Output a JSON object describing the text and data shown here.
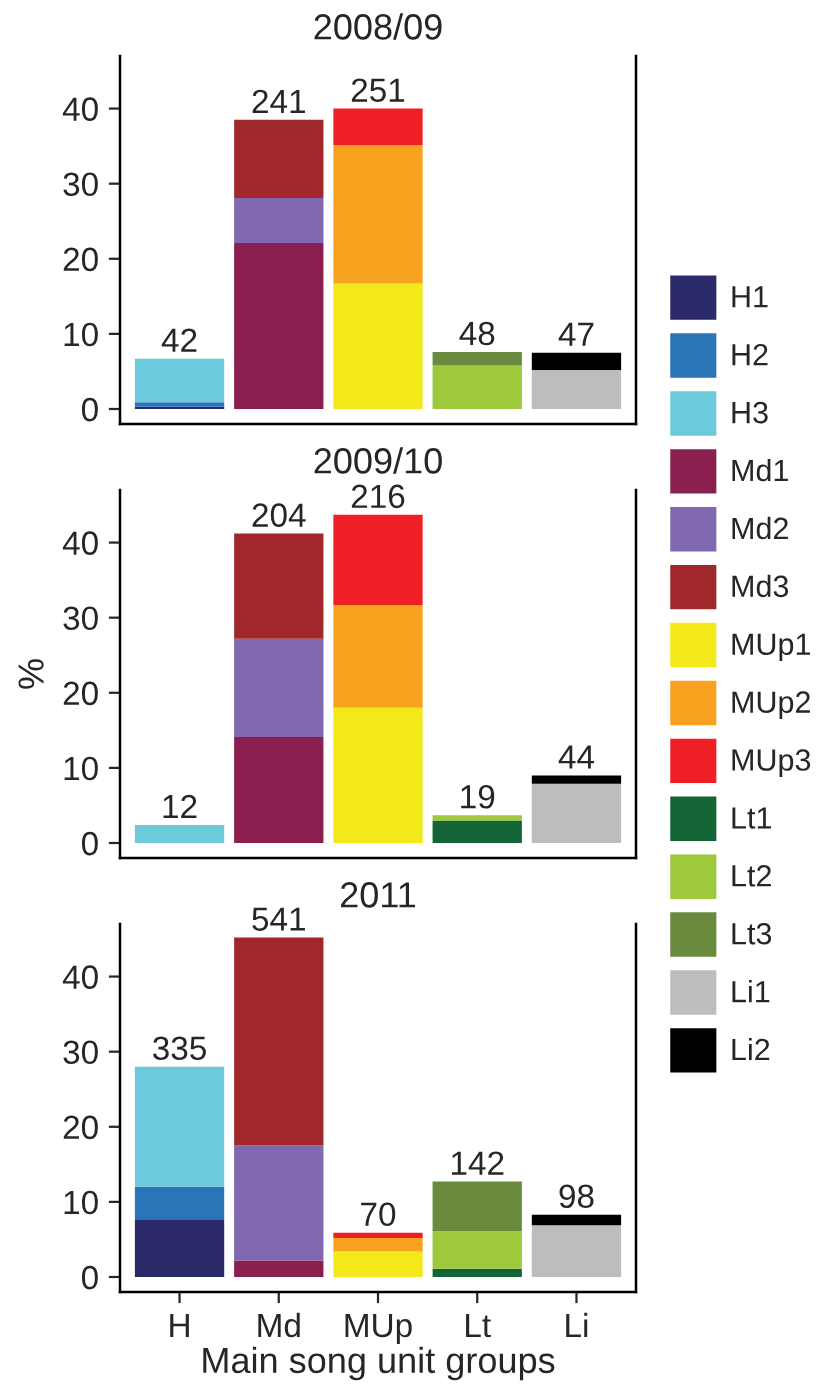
{
  "chart_data": [
    {
      "type": "bar",
      "title": "2008/09",
      "stacked": true,
      "categories": [
        null,
        null,
        null,
        null,
        null
      ],
      "ylim": [
        -2,
        47
      ],
      "yticks": [
        0,
        10,
        20,
        30,
        40
      ],
      "tick_labels": "y",
      "annotations": [
        {
          "text": "42",
          "y": 6.7
        },
        {
          "text": "241",
          "y": 38.5
        },
        {
          "text": "251",
          "y": 40.0
        },
        {
          "text": "48",
          "y": 7.6
        },
        {
          "text": "47",
          "y": 7.5
        }
      ],
      "series": [
        {
          "color": "#2b2a6b",
          "values": [
            0.3,
            null,
            null,
            null,
            null
          ]
        },
        {
          "color": "#2a74b8",
          "values": [
            0.6,
            null,
            null,
            null,
            null
          ]
        },
        {
          "color": "#6ccbdb",
          "values": [
            5.8,
            null,
            null,
            null,
            null
          ]
        },
        {
          "color": "#8a1f50",
          "values": [
            null,
            22.1,
            null,
            null,
            null
          ]
        },
        {
          "color": "#8068b0",
          "values": [
            null,
            6.0,
            null,
            null,
            null
          ]
        },
        {
          "color": "#a1282a",
          "values": [
            null,
            10.4,
            null,
            null,
            null
          ]
        },
        {
          "color": "#f2e81a",
          "values": [
            null,
            null,
            16.7,
            null,
            null
          ]
        },
        {
          "color": "#f8a21f",
          "values": [
            null,
            null,
            18.4,
            null,
            null
          ]
        },
        {
          "color": "#ee2025",
          "values": [
            null,
            null,
            4.9,
            null,
            null
          ]
        },
        {
          "color": "#9ec93d",
          "values": [
            null,
            null,
            null,
            5.8,
            null
          ]
        },
        {
          "color": "#6a8a3e",
          "values": [
            null,
            null,
            null,
            1.8,
            null
          ]
        },
        {
          "color": "#bdbdbd",
          "values": [
            null,
            null,
            null,
            null,
            5.2
          ]
        },
        {
          "color": "#000000",
          "values": [
            null,
            null,
            null,
            null,
            2.3
          ]
        }
      ]
    },
    {
      "type": "bar",
      "title": "2009/10",
      "ylabel": "%",
      "stacked": true,
      "categories": [
        null,
        null,
        null,
        null,
        null
      ],
      "ylim": [
        -2,
        47
      ],
      "yticks": [
        0,
        10,
        20,
        30,
        40
      ],
      "tick_labels": "y",
      "legend": "right",
      "annotations": [
        {
          "text": "12",
          "y": 2.4
        },
        {
          "text": "204",
          "y": 41.2
        },
        {
          "text": "216",
          "y": 43.7
        },
        {
          "text": "19",
          "y": 3.7
        },
        {
          "text": "44",
          "y": 9.0
        }
      ],
      "series": [
        {
          "name": "H1",
          "color": "#2b2a6b",
          "values": [
            null,
            null,
            null,
            null,
            null
          ]
        },
        {
          "name": "H2",
          "color": "#2a74b8",
          "values": [
            null,
            null,
            null,
            null,
            null
          ]
        },
        {
          "name": "H3",
          "color": "#6ccbdb",
          "values": [
            2.4,
            null,
            null,
            null,
            null
          ]
        },
        {
          "name": "Md1",
          "color": "#8a1f50",
          "values": [
            null,
            14.1,
            null,
            null,
            null
          ]
        },
        {
          "name": "Md2",
          "color": "#8068b0",
          "values": [
            null,
            13.1,
            null,
            null,
            null
          ]
        },
        {
          "name": "Md3",
          "color": "#a1282a",
          "values": [
            null,
            14.0,
            null,
            null,
            null
          ]
        },
        {
          "name": "MUp1",
          "color": "#f2e81a",
          "values": [
            null,
            null,
            18.0,
            null,
            null
          ]
        },
        {
          "name": "MUp2",
          "color": "#f8a21f",
          "values": [
            null,
            null,
            13.7,
            null,
            null
          ]
        },
        {
          "name": "MUp3",
          "color": "#ee2025",
          "values": [
            null,
            null,
            12.0,
            null,
            null
          ]
        },
        {
          "name": "Lt1",
          "color": "#146536",
          "values": [
            null,
            null,
            null,
            3.0,
            null
          ]
        },
        {
          "name": "Lt2",
          "color": "#9ec93d",
          "values": [
            null,
            null,
            null,
            0.7,
            null
          ]
        },
        {
          "name": "Lt3",
          "color": "#6a8a3e",
          "values": [
            null,
            null,
            null,
            null,
            null
          ]
        },
        {
          "name": "Li1",
          "color": "#bdbdbd",
          "values": [
            null,
            null,
            null,
            null,
            7.9
          ]
        },
        {
          "name": "Li2",
          "color": "#000000",
          "values": [
            null,
            null,
            null,
            null,
            1.1
          ]
        }
      ]
    },
    {
      "type": "bar",
      "title": "2011",
      "xlabel": "Main song unit groups",
      "stacked": true,
      "categories": [
        "H",
        "Md",
        "MUp",
        "Lt",
        "Li"
      ],
      "ylim": [
        -2,
        47
      ],
      "yticks": [
        0,
        10,
        20,
        30,
        40
      ],
      "annotations": [
        {
          "text": "335",
          "y": 28.0
        },
        {
          "text": "541",
          "y": 45.2
        },
        {
          "text": "70",
          "y": 5.9
        },
        {
          "text": "142",
          "y": 12.7
        },
        {
          "text": "98",
          "y": 8.3
        }
      ],
      "series": [
        {
          "color": "#2b2a6b",
          "values": [
            7.7,
            null,
            null,
            null,
            null
          ]
        },
        {
          "color": "#2a74b8",
          "values": [
            4.3,
            null,
            null,
            null,
            null
          ]
        },
        {
          "color": "#6ccbdb",
          "values": [
            16.0,
            null,
            null,
            null,
            null
          ]
        },
        {
          "color": "#8a1f50",
          "values": [
            null,
            2.2,
            null,
            null,
            null
          ]
        },
        {
          "color": "#8068b0",
          "values": [
            null,
            15.3,
            null,
            null,
            null
          ]
        },
        {
          "color": "#a1282a",
          "values": [
            null,
            27.7,
            null,
            null,
            null
          ]
        },
        {
          "color": "#f2e81a",
          "values": [
            null,
            null,
            3.4,
            null,
            null
          ]
        },
        {
          "color": "#f8a21f",
          "values": [
            null,
            null,
            1.8,
            null,
            null
          ]
        },
        {
          "color": "#ee2025",
          "values": [
            null,
            null,
            0.7,
            null,
            null
          ]
        },
        {
          "color": "#146536",
          "values": [
            null,
            null,
            null,
            1.1,
            null
          ]
        },
        {
          "color": "#9ec93d",
          "values": [
            null,
            null,
            null,
            5.0,
            null
          ]
        },
        {
          "color": "#6a8a3e",
          "values": [
            null,
            null,
            null,
            6.6,
            null
          ]
        },
        {
          "color": "#bdbdbd",
          "values": [
            null,
            null,
            null,
            null,
            6.9
          ]
        },
        {
          "color": "#000000",
          "values": [
            null,
            null,
            null,
            null,
            1.4
          ]
        }
      ]
    }
  ]
}
